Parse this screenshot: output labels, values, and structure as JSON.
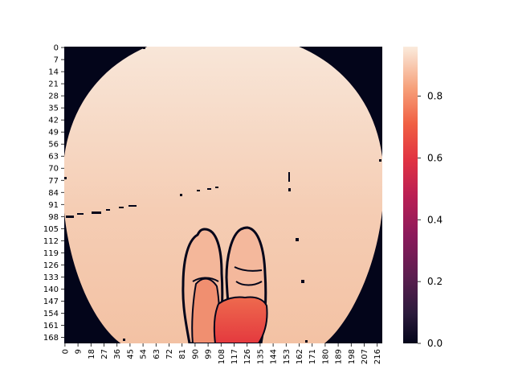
{
  "chart_data": {
    "type": "heatmap",
    "title": "",
    "xlabel": "",
    "ylabel": "",
    "x_tick_labels": [
      "0",
      "9",
      "18",
      "27",
      "36",
      "45",
      "54",
      "63",
      "72",
      "81",
      "90",
      "99",
      "108",
      "117",
      "126",
      "135",
      "144",
      "153",
      "162",
      "171",
      "180",
      "189",
      "198",
      "207",
      "216"
    ],
    "y_tick_labels": [
      "0",
      "7",
      "14",
      "21",
      "28",
      "35",
      "42",
      "49",
      "56",
      "63",
      "70",
      "77",
      "84",
      "91",
      "98",
      "105",
      "112",
      "119",
      "126",
      "133",
      "140",
      "147",
      "154",
      "161",
      "168"
    ],
    "x_range": [
      0,
      220
    ],
    "y_range": [
      0,
      172
    ],
    "colorbar": {
      "range": [
        0.0,
        0.96
      ],
      "ticks": [
        "0.0",
        "0.2",
        "0.4",
        "0.6",
        "0.8"
      ],
      "colormap": "rocket"
    },
    "regions": [
      {
        "name": "background",
        "value": 0.92,
        "note": "smooth gradient ~0.96 at top to ~0.86 at bottom"
      },
      {
        "name": "corners",
        "value": 0.0
      },
      {
        "name": "left-foot",
        "value": 0.82
      },
      {
        "name": "right-foot",
        "value": 0.84
      },
      {
        "name": "lower-feet",
        "value": 0.64
      }
    ],
    "grid": false,
    "legend": "colorbar-right"
  }
}
